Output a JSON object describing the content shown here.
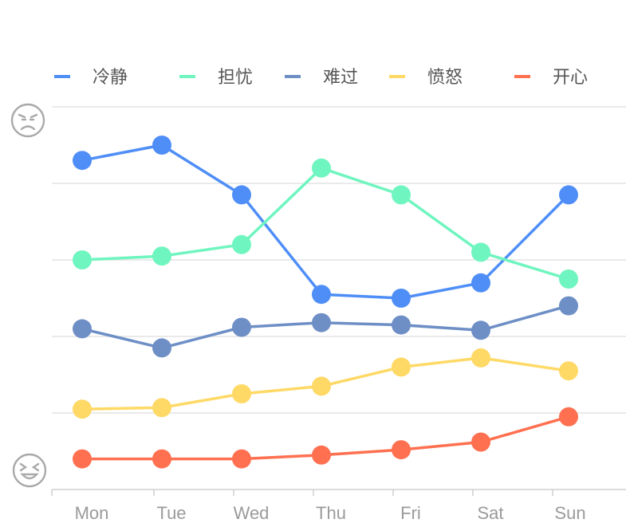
{
  "chart_data": {
    "type": "line",
    "categories": [
      "Mon",
      "Tue",
      "Wed",
      "Thu",
      "Fri",
      "Sat",
      "Sun"
    ],
    "ylim": [
      0,
      5
    ],
    "grid": true,
    "legend_position": "top",
    "y_axis_icons": {
      "top": "angry-face-icon",
      "bottom": "happy-face-icon"
    },
    "series": [
      {
        "name": "冷静",
        "color": "#4f8ef7",
        "values": [
          4.3,
          4.5,
          3.85,
          2.55,
          2.5,
          2.7,
          3.85
        ]
      },
      {
        "name": "担忧",
        "color": "#6ff5bf",
        "values": [
          3.0,
          3.05,
          3.2,
          4.2,
          3.85,
          3.1,
          2.75
        ]
      },
      {
        "name": "难过",
        "color": "#6e8fc6",
        "values": [
          2.1,
          1.85,
          2.12,
          2.18,
          2.15,
          2.08,
          2.4
        ]
      },
      {
        "name": "愤怒",
        "color": "#ffd966",
        "values": [
          1.05,
          1.07,
          1.25,
          1.35,
          1.6,
          1.72,
          1.55
        ]
      },
      {
        "name": "开心",
        "color": "#ff7050",
        "values": [
          0.4,
          0.4,
          0.4,
          0.45,
          0.52,
          0.62,
          0.95
        ]
      }
    ]
  }
}
